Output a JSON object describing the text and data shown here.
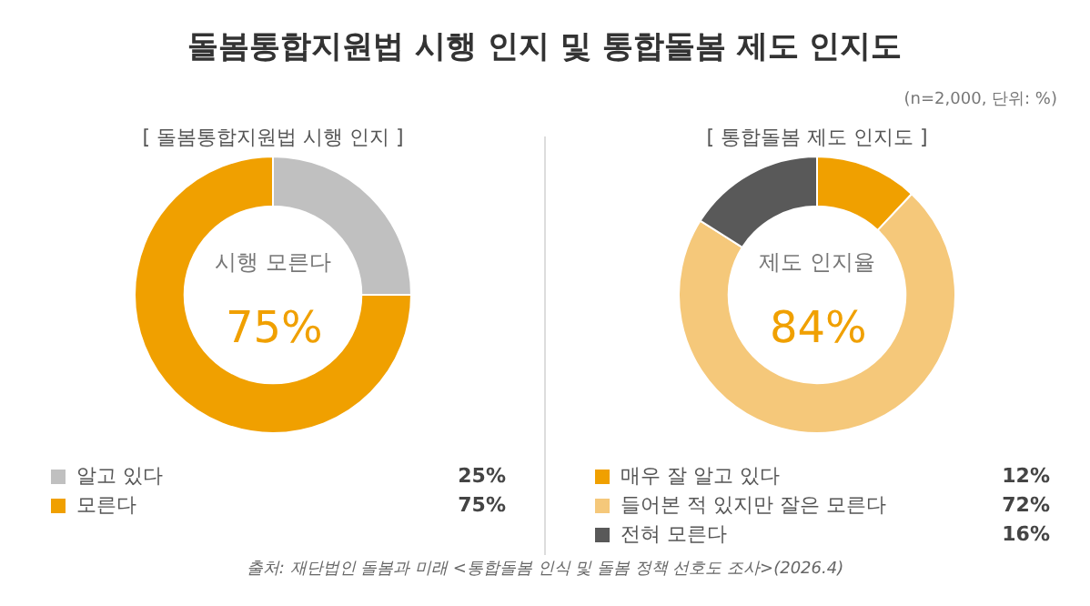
{
  "chart_data": [
    {
      "type": "donut",
      "title": "돌봄통합지원법 시행 인지 및 통합돌봄 제도 인지도",
      "subtitle": "[ 돌봄통합지원법 시행 인지 ]",
      "categories": [
        "알고 있다",
        "모른다"
      ],
      "values": [
        25,
        75
      ],
      "colors": [
        "#c0c0c0",
        "#f0a000"
      ],
      "value_labels": [
        "25%",
        "75%"
      ],
      "legend": "bottom",
      "annotations": [
        "시행 모른다",
        "75%"
      ]
    },
    {
      "type": "donut",
      "subtitle": "[ 통합돌봄 제도 인지도 ]",
      "categories": [
        "매우 잘 알고 있다",
        "들어본 적 있지만 잘은 모른다",
        "전혀 모른다"
      ],
      "values": [
        12,
        72,
        16
      ],
      "colors": [
        "#f0a000",
        "#f5c87a",
        "#595959"
      ],
      "value_labels": [
        "12%",
        "72%",
        "16%"
      ],
      "legend": "bottom",
      "annotations": [
        "제도 인지율",
        "84%",
        "(n=2,000, 단위: %)",
        "출처: 재단법인 돌봄과 미래 <통합돌봄 인식 및 돌봄 정책 선호도 조사>(2026.4)"
      ]
    }
  ]
}
